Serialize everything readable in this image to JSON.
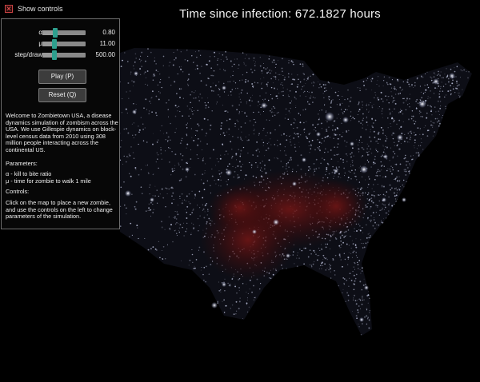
{
  "title": "Time since infection: 672.1827 hours",
  "controls_toggle": {
    "label": "Show controls",
    "checked": true
  },
  "params": [
    {
      "symbol": "α",
      "value": "0.80",
      "level": 0.3
    },
    {
      "symbol": "μ",
      "value": "11.00",
      "level": 0.28
    },
    {
      "symbol": "step/draw",
      "value": "500.00",
      "level": 0.27
    }
  ],
  "buttons": {
    "play": "Play (P)",
    "reset": "Reset (Q)"
  },
  "info": {
    "welcome": "Welcome to Zombietown USA, a disease dynamics simulation of zombism across the USA. We use Gillespie dynamics on block-level census data from 2010 using 308 million people interacting across the continental US.",
    "parameters_heading": "Parameters:",
    "param_alpha": "α - kill to bite ratio",
    "param_mu": "μ - time for zombie to walk 1 mile",
    "controls_heading": "Controls:",
    "controls_text": "Click on the map to place a new zombie, and use the controls on the left to change parameters of the simulation."
  },
  "colors": {
    "accent": "#2e9f8e",
    "infection": "#5a1212",
    "population": "#c8cde8"
  }
}
